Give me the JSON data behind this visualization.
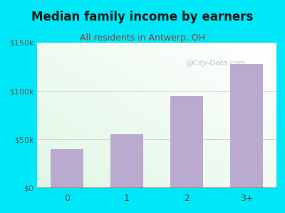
{
  "title": "Median family income by earners",
  "subtitle": "All residents in Antwerp, OH",
  "categories": [
    "0",
    "1",
    "2",
    "3+"
  ],
  "values": [
    40000,
    55000,
    95000,
    128000
  ],
  "bar_color": "#bbaad0",
  "ylim": [
    0,
    150000
  ],
  "yticks": [
    0,
    50000,
    100000,
    150000
  ],
  "ytick_labels": [
    "$0",
    "$50k",
    "$100k",
    "$150k"
  ],
  "title_fontsize": 12,
  "subtitle_fontsize": 9,
  "title_color": "#1a1a1a",
  "subtitle_color": "#8b4040",
  "background_outer": "#00e8f8",
  "watermark": "@City-Data.com"
}
